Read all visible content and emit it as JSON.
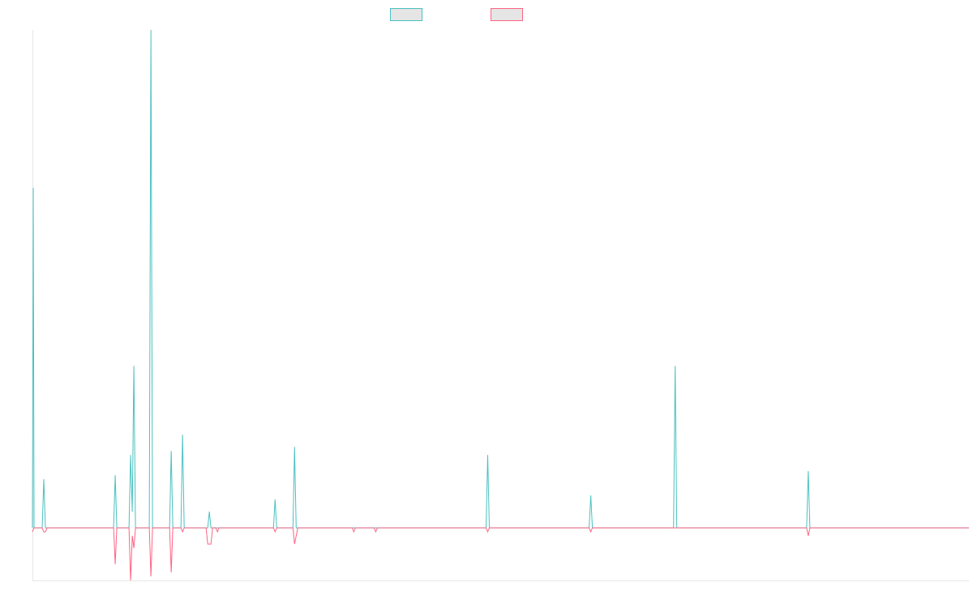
{
  "chart_data": {
    "type": "line",
    "title": "",
    "xlabel": "",
    "ylabel": "",
    "grid": false,
    "legend_position": "top-center",
    "ylim": [
      -6.5,
      61.5
    ],
    "x": [
      0,
      1,
      2,
      3,
      4,
      5,
      6,
      7,
      8,
      9,
      10,
      11,
      12,
      13,
      14,
      15,
      16,
      17,
      18,
      19,
      20,
      21,
      22,
      23,
      24,
      25,
      26,
      27,
      28,
      29,
      30,
      31,
      32,
      33,
      34,
      35,
      36,
      37,
      38,
      39,
      40,
      41,
      42,
      43,
      44,
      45,
      46,
      47,
      48,
      49,
      50,
      51,
      52,
      53,
      54,
      55,
      56,
      57,
      58,
      59,
      60,
      61,
      62,
      63,
      64,
      65,
      66,
      67,
      68,
      69,
      70,
      71,
      72,
      73,
      74,
      75,
      76,
      77,
      78,
      79,
      80,
      81,
      82,
      83,
      84,
      85,
      86,
      87,
      88,
      89,
      90,
      91,
      92,
      93,
      94,
      95,
      96,
      97,
      98,
      99,
      100,
      101,
      102,
      103,
      104,
      105,
      106,
      107,
      108,
      109,
      110,
      111,
      112,
      113,
      114,
      115,
      116,
      117,
      118,
      119,
      120,
      121,
      122,
      123,
      124,
      125,
      126,
      127,
      128,
      129,
      130,
      131,
      132,
      133,
      134,
      135,
      136,
      137,
      138,
      139,
      140,
      141,
      142,
      143,
      144,
      145,
      146,
      147,
      148,
      149,
      150,
      151,
      152,
      153,
      154,
      155,
      156,
      157,
      158,
      159,
      160,
      161,
      162,
      163,
      164,
      165,
      166,
      167,
      168,
      169,
      170,
      171,
      172,
      173,
      174,
      175,
      176,
      177,
      178,
      179,
      180,
      181,
      182,
      183,
      184,
      185,
      186,
      187,
      188,
      189,
      190,
      191,
      192,
      193,
      194,
      195,
      196,
      197,
      198,
      199,
      200,
      201,
      202,
      203,
      204,
      205,
      206,
      207,
      208,
      209,
      210,
      211,
      212,
      213,
      214,
      215,
      216,
      217,
      218,
      219,
      220,
      221,
      222,
      223,
      224,
      225,
      226,
      227,
      228,
      229,
      230,
      231,
      232,
      233,
      234,
      235,
      236,
      237,
      238,
      239,
      240,
      241,
      242,
      243,
      244,
      245,
      246,
      247,
      248,
      249,
      250,
      251,
      252,
      253,
      254,
      255,
      256,
      257,
      258,
      259,
      260,
      261,
      262,
      263,
      264,
      265,
      266,
      267,
      268,
      269,
      270,
      271,
      272,
      273,
      274,
      275,
      276,
      277,
      278,
      279,
      280,
      281,
      282,
      283,
      284,
      285,
      286,
      287,
      288,
      289,
      290,
      291,
      292,
      293,
      294,
      295,
      296,
      297,
      298,
      299,
      300,
      301,
      302,
      303,
      304,
      305,
      306,
      307,
      308,
      309,
      310,
      311,
      312,
      313,
      314,
      315,
      316,
      317,
      318,
      319,
      320,
      321,
      322,
      323,
      324,
      325,
      326,
      327,
      328,
      329,
      330,
      331,
      332,
      333,
      334,
      335,
      336,
      337,
      338,
      339,
      340,
      341,
      342,
      343,
      344,
      345,
      346,
      347,
      348,
      349,
      350,
      351,
      352,
      353,
      354,
      355,
      356,
      357,
      358,
      359,
      360,
      361,
      362,
      363,
      364,
      365,
      366,
      367,
      368,
      369,
      370,
      371,
      372,
      373,
      374,
      375,
      376,
      377,
      378,
      379,
      380,
      381,
      382,
      383,
      384,
      385,
      386,
      387,
      388,
      389,
      390,
      391,
      392,
      393,
      394,
      395,
      396,
      397,
      398,
      399,
      400,
      401,
      402,
      403,
      404,
      405,
      406,
      407,
      408,
      409,
      410,
      411,
      412,
      413,
      414,
      415,
      416,
      417,
      418,
      419,
      420,
      421,
      422,
      423,
      424,
      425,
      426,
      427,
      428,
      429,
      430,
      431,
      432,
      433,
      434,
      435,
      436,
      437,
      438,
      439,
      440,
      441,
      442,
      443,
      444,
      445,
      446,
      447,
      448,
      449,
      450,
      451,
      452,
      453,
      454,
      455,
      456,
      457,
      458,
      459,
      460,
      461,
      462,
      463,
      464,
      465,
      466,
      467,
      468,
      469,
      470,
      471,
      472,
      473,
      474,
      475,
      476,
      477,
      478,
      479,
      480,
      481,
      482,
      483,
      484,
      485,
      486,
      487,
      488,
      489,
      490,
      491,
      492,
      493,
      494,
      495,
      496,
      497,
      498,
      499,
      500,
      501,
      502,
      503,
      504,
      505,
      506,
      507,
      508,
      509,
      510,
      511,
      512,
      513,
      514,
      515,
      516,
      517,
      518,
      519,
      520,
      521,
      522,
      523,
      524,
      525,
      526,
      527,
      528,
      529,
      530,
      531,
      532,
      533,
      534,
      535,
      536,
      537,
      538,
      539,
      540,
      541,
      542,
      543,
      544,
      545,
      546,
      547,
      548,
      549,
      550,
      551,
      552,
      553,
      554,
      555,
      556,
      557,
      558,
      559,
      560,
      561,
      562,
      563,
      564,
      565,
      566,
      567,
      568,
      569,
      570,
      571,
      572,
      573,
      574,
      575,
      576,
      577,
      578,
      579,
      580,
      581,
      582,
      583,
      584,
      585,
      586,
      587,
      588,
      589,
      590,
      591,
      592,
      593,
      594,
      595,
      596,
      597,
      598,
      599,
      600,
      601,
      602,
      603,
      604,
      605,
      606,
      607,
      608,
      609,
      610,
      611,
      612,
      613,
      614,
      615,
      616,
      617,
      618,
      619,
      620,
      621,
      622,
      623,
      624,
      625,
      626,
      627,
      628,
      629,
      630,
      631,
      632,
      633,
      634,
      635,
      636,
      637,
      638,
      639,
      640,
      641,
      642,
      643,
      644,
      645,
      646,
      647,
      648,
      649,
      650,
      651,
      652,
      653,
      654,
      655,
      656,
      657,
      658,
      659,
      660,
      661,
      662,
      663,
      664,
      665,
      666,
      667,
      668,
      669,
      670,
      671,
      672,
      673,
      674,
      675,
      676,
      677,
      678,
      679,
      680,
      681,
      682,
      683,
      684,
      685,
      686,
      687,
      688,
      689,
      690,
      691,
      692,
      693,
      694,
      695,
      696,
      697,
      698,
      699,
      700,
      701,
      702,
      703,
      704,
      705,
      706,
      707,
      708,
      709,
      710,
      711,
      712,
      713,
      714,
      715,
      716,
      717,
      718,
      719,
      720,
      721,
      722,
      723,
      724,
      725,
      726,
      727,
      728,
      729,
      730,
      731,
      732,
      733,
      734,
      735,
      736,
      737,
      738,
      739,
      740,
      741,
      742,
      743,
      744,
      745,
      746,
      747,
      748,
      749,
      750,
      751,
      752,
      753,
      754,
      755,
      756,
      757,
      758,
      759,
      760,
      761,
      762,
      763,
      764,
      765,
      766,
      767,
      768,
      769,
      770,
      771,
      772,
      773,
      774,
      775,
      776,
      777,
      778,
      779,
      780,
      781,
      782,
      783,
      784,
      785,
      786,
      787,
      788,
      789,
      790,
      791,
      792,
      793,
      794,
      795,
      796,
      797,
      798,
      799,
      800,
      801,
      802,
      803,
      804,
      805,
      806,
      807,
      808,
      809,
      810,
      811,
      812,
      813,
      814,
      815,
      816,
      817,
      818,
      819,
      820,
      821,
      822,
      823,
      824,
      825,
      826,
      827,
      828,
      829,
      830,
      831,
      832,
      833,
      834,
      835,
      836,
      837,
      838,
      839,
      840,
      841,
      842,
      843,
      844,
      845,
      846,
      847,
      848,
      849,
      850,
      851,
      852,
      853,
      854,
      855,
      856,
      857,
      858,
      859,
      860,
      861,
      862,
      863,
      864,
      865,
      866,
      867,
      868,
      869,
      870,
      871,
      872,
      873,
      874,
      875,
      876,
      877,
      878,
      879,
      880,
      881,
      882,
      883,
      884,
      885,
      886,
      887,
      888,
      889,
      890,
      891,
      892,
      893,
      894,
      895,
      896,
      897,
      898,
      899,
      900,
      901,
      902,
      903,
      904,
      905,
      906,
      907,
      908,
      909,
      910,
      911,
      912,
      913,
      914,
      915,
      916,
      917,
      918,
      919,
      920,
      921,
      922,
      923,
      924,
      925,
      926,
      927,
      928,
      929,
      930,
      931,
      932,
      933,
      934,
      935,
      936,
      937,
      938,
      939,
      940,
      941,
      942,
      943,
      944,
      945,
      946,
      947,
      948,
      949,
      950,
      951,
      952,
      953,
      954,
      955,
      956,
      957,
      958,
      959,
      960,
      961,
      962,
      963,
      964,
      965,
      966,
      967,
      968,
      969,
      970,
      971,
      972,
      973,
      974,
      975,
      976,
      977,
      978,
      979,
      980,
      981,
      982,
      983,
      984,
      985,
      986,
      987,
      988,
      989,
      990,
      991,
      992,
      993,
      994,
      995,
      996,
      997,
      998,
      999,
      1000,
      1001,
      1002,
      1003,
      1004,
      1005,
      1006,
      1007,
      1008,
      1009,
      1010,
      1011,
      1012,
      1013,
      1014,
      1015,
      1016,
      1017,
      1018,
      1019,
      1020,
      1021,
      1022,
      1023,
      1024,
      1025,
      1026,
      1027,
      1028,
      1029,
      1030,
      1031,
      1032,
      1033,
      1034,
      1035,
      1036,
      1037,
      1038,
      1039,
      1040,
      1041,
      1042,
      1043,
      1044,
      1045,
      1046,
      1047,
      1048,
      1049,
      1050,
      1051,
      1052,
      1053,
      1054,
      1055,
      1056,
      1057,
      1058,
      1059,
      1060,
      1061,
      1062,
      1063,
      1064,
      1065,
      1066,
      1067,
      1068,
      1069,
      1070,
      1071,
      1072,
      1073,
      1074,
      1075,
      1076,
      1077,
      1078,
      1079,
      1080,
      1081,
      1082,
      1083,
      1084,
      1085,
      1086,
      1087,
      1088,
      1089,
      1090,
      1091,
      1092,
      1093,
      1094,
      1095,
      1096,
      1097,
      1098,
      1099,
      1100,
      1101,
      1102,
      1103,
      1104,
      1105,
      1106,
      1107,
      1108,
      1109,
      1110,
      1111,
      1112,
      1113,
      1114,
      1115,
      1116,
      1117,
      1118,
      1119,
      1120,
      1121,
      1122,
      1123,
      1124,
      1125,
      1126,
      1127,
      1128,
      1129,
      1130,
      1131,
      1132,
      1133,
      1134,
      1135,
      1136,
      1137,
      1138,
      1139,
      1140,
      1141,
      1142,
      1143,
      1144,
      1145,
      1146,
      1147,
      1148,
      1149,
      1150,
      1151,
      1152,
      1153,
      1154
    ],
    "series": [
      {
        "color": "#4bc0c0",
        "points": [
          [
            0,
            0
          ],
          [
            1,
            42
          ],
          [
            2,
            0
          ],
          [
            12,
            0
          ],
          [
            14,
            6
          ],
          [
            16,
            0
          ],
          [
            100,
            0
          ],
          [
            102,
            6.5
          ],
          [
            104,
            0
          ],
          [
            119,
            0
          ],
          [
            121,
            9
          ],
          [
            123,
            2
          ],
          [
            125,
            20
          ],
          [
            127,
            0
          ],
          [
            144,
            0
          ],
          [
            146,
            61.5
          ],
          [
            148,
            0
          ],
          [
            169,
            0
          ],
          [
            171,
            9.5
          ],
          [
            173,
            0
          ],
          [
            183,
            0
          ],
          [
            185,
            11.5
          ],
          [
            187,
            0
          ],
          [
            216,
            0
          ],
          [
            218,
            2
          ],
          [
            220,
            0
          ],
          [
            297,
            0
          ],
          [
            299,
            3.5
          ],
          [
            301,
            0
          ],
          [
            321,
            0
          ],
          [
            323,
            10
          ],
          [
            325,
            0
          ],
          [
            559,
            0
          ],
          [
            561,
            9
          ],
          [
            563,
            0
          ],
          [
            686,
            0
          ],
          [
            688,
            4
          ],
          [
            690,
            0
          ],
          [
            790,
            0
          ],
          [
            792,
            20
          ],
          [
            794,
            0
          ],
          [
            954,
            0
          ],
          [
            956,
            7
          ],
          [
            958,
            0
          ],
          [
            1154,
            0
          ]
        ]
      },
      {
        "color": "#ff6384",
        "points": [
          [
            0,
            -0.5
          ],
          [
            2,
            0
          ],
          [
            12,
            0
          ],
          [
            14,
            -0.5
          ],
          [
            16,
            -0.5
          ],
          [
            18,
            0
          ],
          [
            100,
            0
          ],
          [
            102,
            -4.5
          ],
          [
            104,
            0
          ],
          [
            119,
            0
          ],
          [
            121,
            -6.5
          ],
          [
            123,
            -1
          ],
          [
            125,
            -2.5
          ],
          [
            127,
            0
          ],
          [
            144,
            0
          ],
          [
            146,
            -6
          ],
          [
            148,
            0
          ],
          [
            169,
            0
          ],
          [
            171,
            -5.5
          ],
          [
            173,
            0
          ],
          [
            183,
            0
          ],
          [
            185,
            -0.5
          ],
          [
            187,
            0
          ],
          [
            214,
            0
          ],
          [
            216,
            -2
          ],
          [
            220,
            -2
          ],
          [
            222,
            0
          ],
          [
            226,
            0
          ],
          [
            228,
            -0.5
          ],
          [
            230,
            0
          ],
          [
            297,
            0
          ],
          [
            299,
            -0.5
          ],
          [
            301,
            0
          ],
          [
            321,
            0
          ],
          [
            323,
            -2
          ],
          [
            327,
            0
          ],
          [
            394,
            0
          ],
          [
            396,
            -0.5
          ],
          [
            398,
            0
          ],
          [
            421,
            0
          ],
          [
            423,
            -0.5
          ],
          [
            425,
            0
          ],
          [
            559,
            0
          ],
          [
            561,
            -0.5
          ],
          [
            563,
            0
          ],
          [
            686,
            0
          ],
          [
            688,
            -0.5
          ],
          [
            690,
            0
          ],
          [
            954,
            0
          ],
          [
            956,
            -1
          ],
          [
            958,
            0
          ],
          [
            1154,
            0
          ]
        ]
      }
    ],
    "legend": [
      {
        "stroke": "#4bc0c0",
        "fill": "#e5e5e5"
      },
      {
        "stroke": "#ff6384",
        "fill": "#e5e5e5"
      }
    ]
  }
}
